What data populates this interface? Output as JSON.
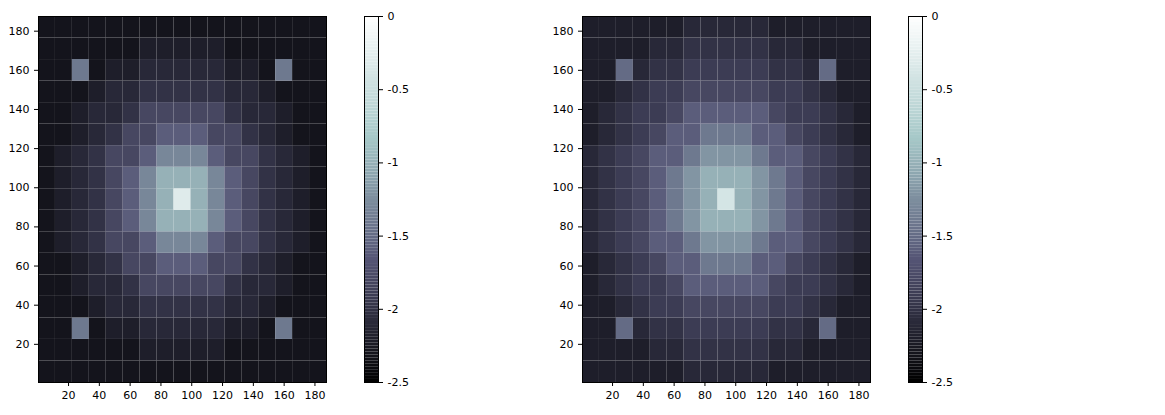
{
  "chart_data": [
    {
      "type": "heatmap",
      "color": "bone",
      "xlim": [
        0.5,
        187.5
      ],
      "ylim": [
        0.5,
        187.5
      ],
      "xticks": [
        20,
        40,
        60,
        80,
        100,
        120,
        140,
        160,
        180
      ],
      "yticks": [
        20,
        40,
        60,
        80,
        100,
        120,
        140,
        160,
        180
      ],
      "x_edges": [
        0.5,
        11.5,
        22.5,
        33.5,
        44.5,
        55.5,
        66.5,
        77.5,
        88.5,
        99.5,
        110.5,
        121.5,
        132.5,
        143.5,
        154.5,
        165.5,
        176.5,
        187.5
      ],
      "y_edges": [
        0.5,
        11.5,
        22.5,
        33.5,
        44.5,
        55.5,
        66.5,
        77.5,
        88.5,
        99.5,
        110.5,
        121.5,
        132.5,
        143.5,
        154.5,
        165.5,
        176.5,
        187.5
      ],
      "z": [
        [
          -2.3,
          -2.3,
          -2.3,
          -2.3,
          -2.3,
          -2.3,
          -2.3,
          -2.3,
          -2.3,
          -2.3,
          -2.3,
          -2.3,
          -2.3,
          -2.3,
          -2.3,
          -2.3,
          -2.3
        ],
        [
          -2.3,
          -2.3,
          -2.3,
          -2.3,
          -2.3,
          -2.3,
          -2.2,
          -2.2,
          -2.2,
          -2.2,
          -2.2,
          -2.3,
          -2.3,
          -2.3,
          -2.3,
          -2.3,
          -2.3
        ],
        [
          -2.3,
          -2.3,
          -1.4,
          -2.3,
          -2.2,
          -2.2,
          -2.1,
          -2.1,
          -2.1,
          -2.1,
          -2.1,
          -2.2,
          -2.2,
          -2.3,
          -1.4,
          -2.3,
          -2.3
        ],
        [
          -2.3,
          -2.3,
          -2.3,
          -2.2,
          -2.1,
          -2.1,
          -2.0,
          -2.0,
          -2.0,
          -2.0,
          -2.0,
          -2.1,
          -2.1,
          -2.2,
          -2.3,
          -2.3,
          -2.3
        ],
        [
          -2.3,
          -2.3,
          -2.2,
          -2.1,
          -2.1,
          -2.0,
          -1.8,
          -1.8,
          -1.8,
          -1.8,
          -1.8,
          -2.0,
          -2.1,
          -2.1,
          -2.2,
          -2.3,
          -2.3
        ],
        [
          -2.3,
          -2.3,
          -2.2,
          -2.1,
          -2.0,
          -1.8,
          -1.8,
          -1.6,
          -1.6,
          -1.6,
          -1.8,
          -1.8,
          -2.0,
          -2.1,
          -2.2,
          -2.3,
          -2.3
        ],
        [
          -2.3,
          -2.2,
          -2.1,
          -2.0,
          -1.8,
          -1.8,
          -1.6,
          -1.3,
          -1.3,
          -1.3,
          -1.6,
          -1.8,
          -1.8,
          -2.0,
          -2.1,
          -2.2,
          -2.3
        ],
        [
          -2.3,
          -2.2,
          -2.1,
          -2.0,
          -1.8,
          -1.6,
          -1.3,
          -1.0,
          -1.0,
          -1.0,
          -1.3,
          -1.6,
          -1.8,
          -2.0,
          -2.1,
          -2.2,
          -2.3
        ],
        [
          -2.3,
          -2.2,
          -2.1,
          -2.0,
          -1.8,
          -1.6,
          -1.3,
          -1.0,
          -0.3,
          -1.0,
          -1.3,
          -1.6,
          -1.8,
          -2.0,
          -2.1,
          -2.2,
          -2.3
        ],
        [
          -2.3,
          -2.2,
          -2.1,
          -2.0,
          -1.8,
          -1.6,
          -1.3,
          -1.0,
          -1.0,
          -1.0,
          -1.3,
          -1.6,
          -1.8,
          -2.0,
          -2.1,
          -2.2,
          -2.3
        ],
        [
          -2.3,
          -2.2,
          -2.1,
          -2.0,
          -1.8,
          -1.8,
          -1.6,
          -1.3,
          -1.3,
          -1.3,
          -1.6,
          -1.8,
          -1.8,
          -2.0,
          -2.1,
          -2.2,
          -2.3
        ],
        [
          -2.3,
          -2.3,
          -2.2,
          -2.1,
          -2.0,
          -1.8,
          -1.8,
          -1.6,
          -1.6,
          -1.6,
          -1.8,
          -1.8,
          -2.0,
          -2.1,
          -2.2,
          -2.3,
          -2.3
        ],
        [
          -2.3,
          -2.3,
          -2.2,
          -2.1,
          -2.1,
          -2.0,
          -1.8,
          -1.8,
          -1.8,
          -1.8,
          -1.8,
          -2.0,
          -2.1,
          -2.1,
          -2.2,
          -2.3,
          -2.3
        ],
        [
          -2.3,
          -2.3,
          -2.3,
          -2.2,
          -2.1,
          -2.1,
          -2.0,
          -2.0,
          -2.0,
          -2.0,
          -2.0,
          -2.1,
          -2.1,
          -2.2,
          -2.3,
          -2.3,
          -2.3
        ],
        [
          -2.3,
          -2.3,
          -1.4,
          -2.3,
          -2.2,
          -2.2,
          -2.1,
          -2.1,
          -2.1,
          -2.1,
          -2.1,
          -2.2,
          -2.2,
          -2.3,
          -1.4,
          -2.3,
          -2.3
        ],
        [
          -2.3,
          -2.3,
          -2.3,
          -2.3,
          -2.3,
          -2.3,
          -2.2,
          -2.2,
          -2.2,
          -2.2,
          -2.2,
          -2.3,
          -2.3,
          -2.3,
          -2.3,
          -2.3,
          -2.3
        ],
        [
          -2.3,
          -2.3,
          -2.3,
          -2.3,
          -2.3,
          -2.3,
          -2.3,
          -2.3,
          -2.3,
          -2.3,
          -2.3,
          -2.3,
          -2.3,
          -2.3,
          -2.3,
          -2.3,
          -2.3
        ]
      ],
      "color_range": [
        -2.5,
        0
      ],
      "color_ticks": [
        0,
        -0.5,
        -1,
        -1.5,
        -2,
        -2.5
      ]
    },
    {
      "type": "heatmap",
      "color": "bone",
      "xlim": [
        0.5,
        187.5
      ],
      "ylim": [
        0.5,
        187.5
      ],
      "xticks": [
        20,
        40,
        60,
        80,
        100,
        120,
        140,
        160,
        180
      ],
      "yticks": [
        20,
        40,
        60,
        80,
        100,
        120,
        140,
        160,
        180
      ],
      "x_edges": [
        0.5,
        11.5,
        22.5,
        33.5,
        44.5,
        55.5,
        66.5,
        77.5,
        88.5,
        99.5,
        110.5,
        121.5,
        132.5,
        143.5,
        154.5,
        165.5,
        176.5,
        187.5
      ],
      "y_edges": [
        0.5,
        11.5,
        22.5,
        33.5,
        44.5,
        55.5,
        66.5,
        77.5,
        88.5,
        99.5,
        110.5,
        121.5,
        132.5,
        143.5,
        154.5,
        165.5,
        176.5,
        187.5
      ],
      "z": [
        [
          -2.2,
          -2.2,
          -2.2,
          -2.2,
          -2.2,
          -2.2,
          -2.1,
          -2.1,
          -2.1,
          -2.1,
          -2.1,
          -2.2,
          -2.2,
          -2.2,
          -2.2,
          -2.2,
          -2.2
        ],
        [
          -2.2,
          -2.2,
          -2.2,
          -2.2,
          -2.1,
          -2.1,
          -2.0,
          -2.0,
          -2.0,
          -2.0,
          -2.0,
          -2.1,
          -2.1,
          -2.2,
          -2.2,
          -2.2,
          -2.2
        ],
        [
          -2.2,
          -2.2,
          -1.5,
          -2.1,
          -2.0,
          -2.0,
          -1.9,
          -1.9,
          -1.9,
          -1.9,
          -1.9,
          -2.0,
          -2.0,
          -2.1,
          -1.5,
          -2.2,
          -2.2
        ],
        [
          -2.2,
          -2.2,
          -2.1,
          -2.0,
          -1.9,
          -1.9,
          -1.8,
          -1.8,
          -1.8,
          -1.8,
          -1.8,
          -1.9,
          -1.9,
          -2.0,
          -2.1,
          -2.2,
          -2.2
        ],
        [
          -2.2,
          -2.1,
          -2.0,
          -1.9,
          -1.9,
          -1.8,
          -1.6,
          -1.6,
          -1.6,
          -1.6,
          -1.6,
          -1.8,
          -1.9,
          -1.9,
          -2.0,
          -2.1,
          -2.2
        ],
        [
          -2.2,
          -2.1,
          -2.0,
          -1.9,
          -1.8,
          -1.6,
          -1.6,
          -1.4,
          -1.4,
          -1.4,
          -1.6,
          -1.6,
          -1.8,
          -1.9,
          -2.0,
          -2.1,
          -2.2
        ],
        [
          -2.1,
          -2.0,
          -1.9,
          -1.8,
          -1.6,
          -1.6,
          -1.4,
          -1.2,
          -1.2,
          -1.2,
          -1.4,
          -1.6,
          -1.6,
          -1.8,
          -1.9,
          -2.0,
          -2.1
        ],
        [
          -2.1,
          -2.0,
          -1.9,
          -1.8,
          -1.6,
          -1.4,
          -1.2,
          -1.0,
          -1.0,
          -1.0,
          -1.2,
          -1.4,
          -1.6,
          -1.8,
          -1.9,
          -2.0,
          -2.1
        ],
        [
          -2.1,
          -2.0,
          -1.9,
          -1.8,
          -1.6,
          -1.4,
          -1.2,
          -1.0,
          -0.4,
          -1.0,
          -1.2,
          -1.4,
          -1.6,
          -1.8,
          -1.9,
          -2.0,
          -2.1
        ],
        [
          -2.1,
          -2.0,
          -1.9,
          -1.8,
          -1.6,
          -1.4,
          -1.2,
          -1.0,
          -1.0,
          -1.0,
          -1.2,
          -1.4,
          -1.6,
          -1.8,
          -1.9,
          -2.0,
          -2.1
        ],
        [
          -2.1,
          -2.0,
          -1.9,
          -1.8,
          -1.6,
          -1.6,
          -1.4,
          -1.2,
          -1.2,
          -1.2,
          -1.4,
          -1.6,
          -1.6,
          -1.8,
          -1.9,
          -2.0,
          -2.1
        ],
        [
          -2.2,
          -2.1,
          -2.0,
          -1.9,
          -1.8,
          -1.6,
          -1.6,
          -1.4,
          -1.4,
          -1.4,
          -1.6,
          -1.6,
          -1.8,
          -1.9,
          -2.0,
          -2.1,
          -2.2
        ],
        [
          -2.2,
          -2.1,
          -2.0,
          -1.9,
          -1.9,
          -1.8,
          -1.6,
          -1.6,
          -1.6,
          -1.6,
          -1.6,
          -1.8,
          -1.9,
          -1.9,
          -2.0,
          -2.1,
          -2.2
        ],
        [
          -2.2,
          -2.2,
          -2.1,
          -2.0,
          -1.9,
          -1.9,
          -1.8,
          -1.8,
          -1.8,
          -1.8,
          -1.8,
          -1.9,
          -1.9,
          -2.0,
          -2.1,
          -2.2,
          -2.2
        ],
        [
          -2.2,
          -2.2,
          -1.5,
          -2.1,
          -2.0,
          -2.0,
          -1.9,
          -1.9,
          -1.9,
          -1.9,
          -1.9,
          -2.0,
          -2.0,
          -2.1,
          -1.5,
          -2.2,
          -2.2
        ],
        [
          -2.2,
          -2.2,
          -2.2,
          -2.2,
          -2.1,
          -2.1,
          -2.0,
          -2.0,
          -2.0,
          -2.0,
          -2.0,
          -2.1,
          -2.1,
          -2.2,
          -2.2,
          -2.2,
          -2.2
        ],
        [
          -2.2,
          -2.2,
          -2.2,
          -2.2,
          -2.2,
          -2.2,
          -2.1,
          -2.1,
          -2.1,
          -2.1,
          -2.1,
          -2.2,
          -2.2,
          -2.2,
          -2.2,
          -2.2,
          -2.2
        ]
      ],
      "color_range": [
        -2.5,
        0
      ],
      "color_ticks": [
        0,
        -0.5,
        -1,
        -1.5,
        -2,
        -2.5
      ]
    }
  ]
}
